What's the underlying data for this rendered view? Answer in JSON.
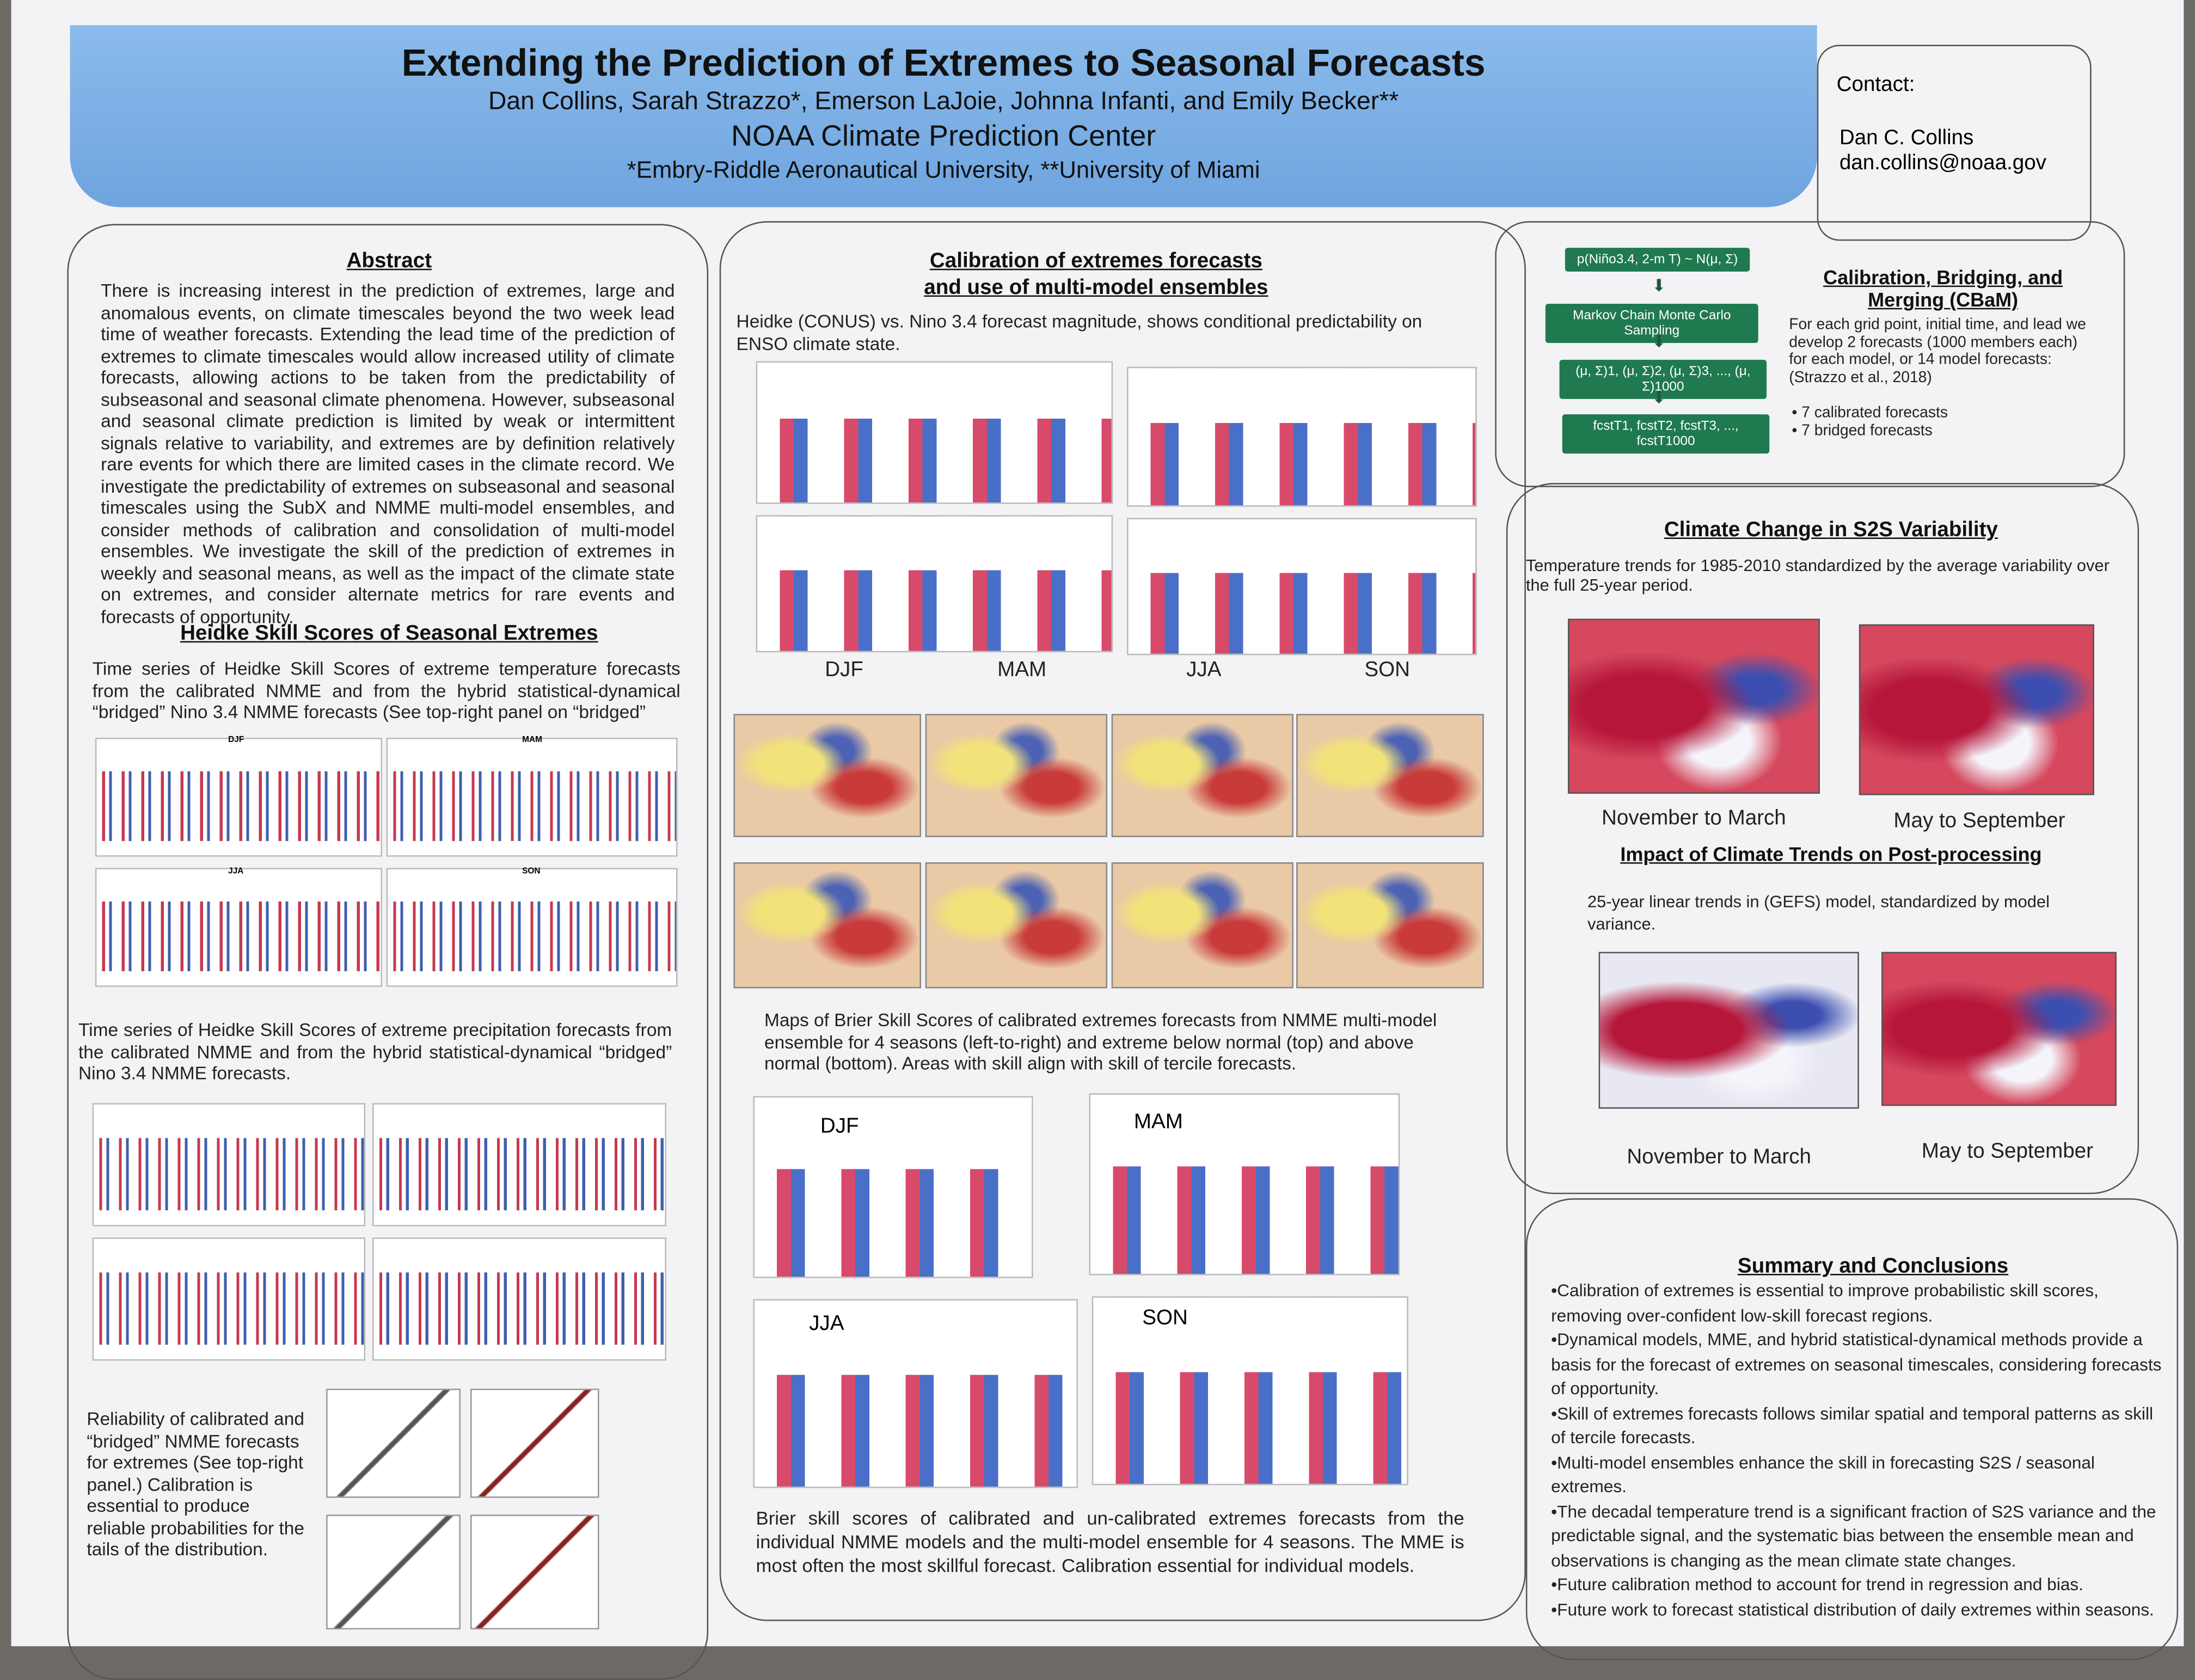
{
  "header": {
    "title": "Extending the Prediction of Extremes to Seasonal Forecasts",
    "authors": "Dan Collins, Sarah Strazzo*, Emerson LaJoie, Johnna Infanti, and Emily Becker**",
    "affiliation": "NOAA Climate Prediction Center",
    "footnote": "*Embry-Riddle Aeronautical University, **University of Miami"
  },
  "contact": {
    "label": "Contact:",
    "name": "Dan C. Collins",
    "email": "dan.collins@noaa.gov"
  },
  "abstract": {
    "heading": "Abstract",
    "text": "There is increasing interest in the prediction of extremes, large and anomalous events, on climate timescales beyond the two week lead time of weather forecasts. Extending the lead time of the prediction of extremes to climate timescales would allow increased utility of climate forecasts, allowing actions to be taken from the predictability of subseasonal and seasonal climate phenomena. However, subseasonal and seasonal climate prediction is limited by weak or intermittent signals relative to variability, and extremes are by definition relatively rare events for which there are limited cases in the climate record. We investigate the predictability of extremes on subseasonal and seasonal timescales using the SubX and NMME multi-model ensembles, and consider methods of calibration and consolidation of multi-model ensembles. We investigate the skill of the prediction of extremes in weekly and seasonal means, as well as the impact of the climate state on extremes, and consider alternate metrics for rare events and forecasts of opportunity."
  },
  "heidke": {
    "heading": "Heidke Skill Scores of Seasonal Extremes",
    "temp_text": "Time series of Heidke Skill Scores of extreme temperature forecasts from the calibrated NMME and from the hybrid statistical-dynamical “bridged” Nino 3.4 NMME forecasts (See top-right panel on “bridged”",
    "precip_text": "Time series of Heidke Skill Scores of extreme precipitation forecasts from the calibrated NMME and from the hybrid statistical-dynamical “bridged” Nino 3.4 NMME forecasts.",
    "reliability_text": "Reliability of calibrated and “bridged” NMME forecasts for extremes (See top-right panel.) Calibration is essential to produce reliable probabilities for the tails of the distribution.",
    "panel_seasons": [
      "DJF",
      "MAM",
      "JJA",
      "SON"
    ]
  },
  "calibration": {
    "heading_line1": "Calibration of extremes forecasts",
    "heading_line2": "and use of multi-model ensembles",
    "intro": "Heidke (CONUS) vs. Nino 3.4 forecast magnitude, shows conditional predictability on ENSO climate state.",
    "season_labels": [
      "DJF",
      "MAM",
      "JJA",
      "SON"
    ],
    "maps_caption": "Maps of Brier Skill Scores of calibrated extremes forecasts from NMME multi-model ensemble for 4 seasons (left-to-right) and extreme below normal (top) and above normal (bottom). Areas with skill align with skill of tercile forecasts.",
    "brier_seasons": [
      "DJF",
      "MAM",
      "JJA",
      "SON"
    ],
    "brier_caption": "Brier skill scores of calibrated and un-calibrated extremes forecasts from the individual NMME models and the multi-model ensemble for 4 seasons. The MME is most often the most skillful forecast. Calibration essential for individual models."
  },
  "flow": {
    "nodes": [
      "p(Niño3.4, 2-m T) ~ N(μ, Σ)",
      "Markov Chain Monte Carlo Sampling",
      "(μ, Σ)1, (μ, Σ)2, (μ, Σ)3, ..., (μ, Σ)1000",
      "fcstT1, fcstT2, fcstT3, ..., fcstT1000"
    ]
  },
  "cbam": {
    "heading": "Calibration, Bridging, and Merging (CBaM)",
    "text": "For each grid point, initial time, and lead we develop 2 forecasts (1000 members each) for each model, or 14 model forecasts: (Strazzo et al., 2018)",
    "bullets": [
      "• 7 calibrated forecasts",
      "• 7 bridged forecasts"
    ]
  },
  "climate_change": {
    "heading": "Climate Change in S2S Variability",
    "text": "Temperature trends for 1985-2010 standardized by the average variability over the full 25-year period.",
    "map_labels": [
      "November to March",
      "May to September"
    ]
  },
  "impact": {
    "heading": "Impact of Climate Trends on Post-processing",
    "text": "25-year linear trends in (GEFS) model, standardized by model variance.",
    "map_labels": [
      "November to March",
      "May to September"
    ]
  },
  "summary": {
    "heading": "Summary and Conclusions",
    "bullets": [
      "•Calibration of extremes is essential to improve probabilistic skill scores, removing over-confident low-skill forecast regions.",
      "•Dynamical models, MME, and hybrid statistical-dynamical methods provide a basis for the forecast of extremes on seasonal timescales, considering forecasts of opportunity.",
      "•Skill of extremes forecasts follows similar spatial and temporal patterns as skill of tercile forecasts.",
      "•Multi-model ensembles enhance the skill in forecasting S2S / seasonal extremes.",
      "•The decadal temperature trend is a significant fraction of S2S variance and the predictable signal, and the systematic bias between the ensemble mean and observations is changing as the mean climate state changes.",
      "•Future calibration method to account for trend in regression and bias.",
      "•Future work to forecast statistical distribution of daily extremes within seasons."
    ]
  }
}
